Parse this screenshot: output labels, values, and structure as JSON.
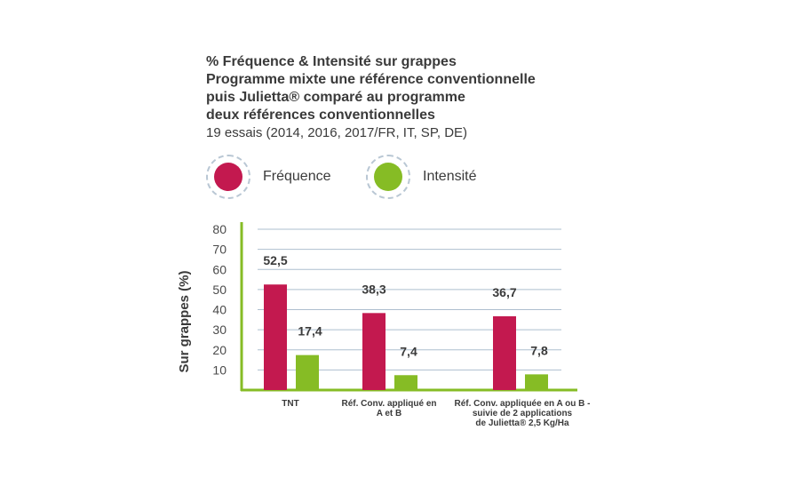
{
  "chart_data": {
    "type": "bar",
    "title_lines": [
      "% Fréquence & Intensité sur grappes",
      "Programme mixte une référence conventionnelle",
      "puis Julietta® comparé au programme",
      "deux références conventionnelles"
    ],
    "subtitle": "19 essais (2014, 2016, 2017/FR, IT, SP, DE)",
    "ylabel": "Sur grappes (%)",
    "xlabel": "",
    "ylim": [
      0,
      80
    ],
    "yticks": [
      10,
      20,
      30,
      40,
      50,
      60,
      70,
      80
    ],
    "grid": true,
    "legend_position": "top",
    "categories": [
      [
        "TNT"
      ],
      [
        "Réf. Conv. appliqué en",
        "A et B"
      ],
      [
        "Réf. Conv. appliquée en A ou B -",
        "suivie de 2 applications",
        "de Julietta® 2,5 Kg/Ha"
      ]
    ],
    "series": [
      {
        "name": "Fréquence",
        "color": "#c3194f",
        "values": [
          52.5,
          38.3,
          36.7
        ],
        "labels": [
          "52,5",
          "38,3",
          "36,7"
        ]
      },
      {
        "name": "Intensité",
        "color": "#86bc25",
        "values": [
          17.4,
          7.4,
          7.8
        ],
        "labels": [
          "17,4",
          "7,4",
          "7,8"
        ]
      }
    ],
    "axis_color": "#86bc25",
    "grid_color": "#aebfcf"
  }
}
